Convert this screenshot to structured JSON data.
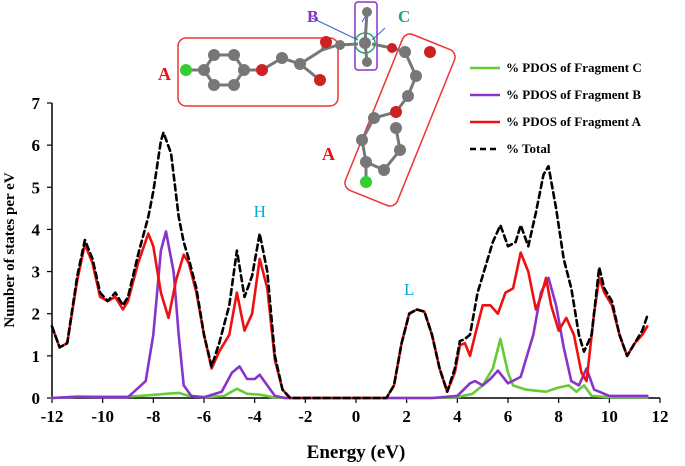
{
  "chart_data": {
    "type": "line",
    "xlabel": "Energy (eV)",
    "ylabel": "Number of states per eV",
    "xlim": [
      -12,
      12
    ],
    "ylim": [
      0,
      7
    ],
    "xticks": [
      -12,
      -10,
      -8,
      -6,
      -4,
      -2,
      0,
      2,
      4,
      6,
      8,
      10,
      12
    ],
    "yticks": [
      0,
      1,
      2,
      3,
      4,
      5,
      6,
      7
    ],
    "legend_position": "top-right",
    "series": [
      {
        "name": "% PDOS of Fragment C",
        "color": "#66cc33",
        "style": "solid",
        "points": [
          [
            -12,
            0
          ],
          [
            -11,
            0.03
          ],
          [
            -10,
            0.03
          ],
          [
            -9,
            0.03
          ],
          [
            -8.3,
            0.06
          ],
          [
            -7.5,
            0.1
          ],
          [
            -7,
            0.12
          ],
          [
            -6.6,
            0.05
          ],
          [
            -6,
            0.02
          ],
          [
            -5.2,
            0.05
          ],
          [
            -4.7,
            0.22
          ],
          [
            -4.3,
            0.1
          ],
          [
            -3.8,
            0.08
          ],
          [
            -3.3,
            0.02
          ],
          [
            -2.8,
            0
          ],
          [
            -2,
            0
          ],
          [
            0,
            0
          ],
          [
            2,
            0
          ],
          [
            3,
            0
          ],
          [
            4,
            0.02
          ],
          [
            4.6,
            0.1
          ],
          [
            5,
            0.3
          ],
          [
            5.4,
            0.7
          ],
          [
            5.7,
            1.4
          ],
          [
            6,
            0.6
          ],
          [
            6.2,
            0.3
          ],
          [
            6.7,
            0.2
          ],
          [
            7,
            0.18
          ],
          [
            7.5,
            0.15
          ],
          [
            8,
            0.25
          ],
          [
            8.4,
            0.3
          ],
          [
            8.7,
            0.15
          ],
          [
            9,
            0.3
          ],
          [
            9.3,
            0.05
          ],
          [
            10,
            0.02
          ],
          [
            11,
            0.02
          ],
          [
            11.5,
            0.02
          ]
        ]
      },
      {
        "name": "% PDOS of Fragment B",
        "color": "#8833cc",
        "style": "solid",
        "points": [
          [
            -12,
            0
          ],
          [
            -11,
            0.03
          ],
          [
            -10,
            0.02
          ],
          [
            -9,
            0.02
          ],
          [
            -8.3,
            0.4
          ],
          [
            -8,
            1.5
          ],
          [
            -7.7,
            3.5
          ],
          [
            -7.5,
            3.95
          ],
          [
            -7.2,
            3
          ],
          [
            -7,
            1.5
          ],
          [
            -6.8,
            0.3
          ],
          [
            -6.5,
            0.05
          ],
          [
            -6,
            0.02
          ],
          [
            -5.3,
            0.15
          ],
          [
            -4.9,
            0.6
          ],
          [
            -4.6,
            0.75
          ],
          [
            -4.3,
            0.45
          ],
          [
            -4,
            0.45
          ],
          [
            -3.8,
            0.55
          ],
          [
            -3.5,
            0.3
          ],
          [
            -3.2,
            0.05
          ],
          [
            -2.8,
            0
          ],
          [
            -2,
            0
          ],
          [
            0,
            0
          ],
          [
            2,
            0
          ],
          [
            3,
            0
          ],
          [
            4,
            0.05
          ],
          [
            4.5,
            0.35
          ],
          [
            4.7,
            0.4
          ],
          [
            5,
            0.3
          ],
          [
            5.3,
            0.45
          ],
          [
            5.6,
            0.65
          ],
          [
            6,
            0.35
          ],
          [
            6.5,
            0.5
          ],
          [
            7,
            1.5
          ],
          [
            7.3,
            2.5
          ],
          [
            7.6,
            2.85
          ],
          [
            7.9,
            2.2
          ],
          [
            8.2,
            1.2
          ],
          [
            8.5,
            0.4
          ],
          [
            8.8,
            0.3
          ],
          [
            9.1,
            0.7
          ],
          [
            9.4,
            0.2
          ],
          [
            10,
            0.05
          ],
          [
            11,
            0.05
          ],
          [
            11.5,
            0.05
          ]
        ]
      },
      {
        "name": "% PDOS of Fragment A",
        "color": "#ee1111",
        "style": "solid",
        "points": [
          [
            -12,
            1.7
          ],
          [
            -11.7,
            1.2
          ],
          [
            -11.4,
            1.3
          ],
          [
            -11,
            2.8
          ],
          [
            -10.7,
            3.65
          ],
          [
            -10.4,
            3.2
          ],
          [
            -10.1,
            2.4
          ],
          [
            -9.8,
            2.3
          ],
          [
            -9.5,
            2.4
          ],
          [
            -9.2,
            2.1
          ],
          [
            -9,
            2.3
          ],
          [
            -8.6,
            3.2
          ],
          [
            -8.2,
            3.9
          ],
          [
            -8,
            3.6
          ],
          [
            -7.7,
            2.5
          ],
          [
            -7.4,
            1.9
          ],
          [
            -7.1,
            2.8
          ],
          [
            -6.8,
            3.4
          ],
          [
            -6.6,
            3.2
          ],
          [
            -6.3,
            2.5
          ],
          [
            -6,
            1.5
          ],
          [
            -5.7,
            0.7
          ],
          [
            -5.4,
            1.1
          ],
          [
            -5,
            1.5
          ],
          [
            -4.7,
            2.5
          ],
          [
            -4.4,
            1.6
          ],
          [
            -4.1,
            2.0
          ],
          [
            -3.8,
            3.3
          ],
          [
            -3.5,
            2.6
          ],
          [
            -3.2,
            0.9
          ],
          [
            -2.9,
            0.2
          ],
          [
            -2.6,
            0
          ],
          [
            -2,
            0
          ],
          [
            0,
            0
          ],
          [
            1.2,
            0
          ],
          [
            1.5,
            0.3
          ],
          [
            1.8,
            1.3
          ],
          [
            2.1,
            2.0
          ],
          [
            2.4,
            2.1
          ],
          [
            2.7,
            2.05
          ],
          [
            3,
            1.5
          ],
          [
            3.3,
            0.7
          ],
          [
            3.6,
            0.15
          ],
          [
            3.9,
            0.6
          ],
          [
            4.1,
            1.25
          ],
          [
            4.3,
            1.3
          ],
          [
            4.5,
            1.0
          ],
          [
            4.7,
            1.5
          ],
          [
            5,
            2.2
          ],
          [
            5.3,
            2.2
          ],
          [
            5.6,
            2.0
          ],
          [
            5.9,
            2.5
          ],
          [
            6.2,
            2.6
          ],
          [
            6.5,
            3.45
          ],
          [
            6.8,
            3.0
          ],
          [
            7.1,
            2.1
          ],
          [
            7.3,
            2.4
          ],
          [
            7.5,
            2.85
          ],
          [
            7.7,
            2.2
          ],
          [
            8,
            1.6
          ],
          [
            8.3,
            1.9
          ],
          [
            8.6,
            1.5
          ],
          [
            8.9,
            0.6
          ],
          [
            9.1,
            0.4
          ],
          [
            9.4,
            2.0
          ],
          [
            9.6,
            2.85
          ],
          [
            9.8,
            2.5
          ],
          [
            10.1,
            2.2
          ],
          [
            10.4,
            1.5
          ],
          [
            10.7,
            1.0
          ],
          [
            11,
            1.3
          ],
          [
            11.3,
            1.5
          ],
          [
            11.5,
            1.7
          ]
        ]
      },
      {
        "name": "% Total",
        "color": "#000000",
        "style": "dashed",
        "points": [
          [
            -12,
            1.7
          ],
          [
            -11.7,
            1.2
          ],
          [
            -11.4,
            1.3
          ],
          [
            -11,
            2.9
          ],
          [
            -10.7,
            3.75
          ],
          [
            -10.4,
            3.3
          ],
          [
            -10.1,
            2.5
          ],
          [
            -9.8,
            2.3
          ],
          [
            -9.5,
            2.5
          ],
          [
            -9.2,
            2.2
          ],
          [
            -9,
            2.4
          ],
          [
            -8.6,
            3.4
          ],
          [
            -8.2,
            4.3
          ],
          [
            -8,
            4.9
          ],
          [
            -7.7,
            6.1
          ],
          [
            -7.6,
            6.3
          ],
          [
            -7.3,
            5.8
          ],
          [
            -7.0,
            4.3
          ],
          [
            -6.8,
            3.7
          ],
          [
            -6.6,
            3.3
          ],
          [
            -6.3,
            2.6
          ],
          [
            -6,
            1.5
          ],
          [
            -5.7,
            0.75
          ],
          [
            -5.4,
            1.3
          ],
          [
            -5,
            2.2
          ],
          [
            -4.7,
            3.5
          ],
          [
            -4.4,
            2.4
          ],
          [
            -4.1,
            2.9
          ],
          [
            -3.8,
            3.9
          ],
          [
            -3.5,
            3.0
          ],
          [
            -3.2,
            1.0
          ],
          [
            -2.9,
            0.2
          ],
          [
            -2.6,
            0
          ],
          [
            -2,
            0
          ],
          [
            0,
            0
          ],
          [
            1.2,
            0
          ],
          [
            1.5,
            0.3
          ],
          [
            1.8,
            1.3
          ],
          [
            2.1,
            2.0
          ],
          [
            2.4,
            2.1
          ],
          [
            2.7,
            2.05
          ],
          [
            3,
            1.5
          ],
          [
            3.3,
            0.7
          ],
          [
            3.6,
            0.15
          ],
          [
            3.9,
            0.7
          ],
          [
            4.1,
            1.35
          ],
          [
            4.3,
            1.4
          ],
          [
            4.5,
            1.5
          ],
          [
            4.8,
            2.5
          ],
          [
            5.1,
            3.1
          ],
          [
            5.4,
            3.7
          ],
          [
            5.7,
            4.1
          ],
          [
            6,
            3.6
          ],
          [
            6.3,
            3.7
          ],
          [
            6.5,
            4.1
          ],
          [
            6.8,
            3.6
          ],
          [
            7.1,
            4.4
          ],
          [
            7.4,
            5.3
          ],
          [
            7.6,
            5.5
          ],
          [
            7.9,
            4.5
          ],
          [
            8.2,
            3.3
          ],
          [
            8.5,
            2.6
          ],
          [
            8.8,
            1.5
          ],
          [
            9,
            1.1
          ],
          [
            9.3,
            1.5
          ],
          [
            9.6,
            3.1
          ],
          [
            9.8,
            2.6
          ],
          [
            10.1,
            2.3
          ],
          [
            10.4,
            1.5
          ],
          [
            10.7,
            1.0
          ],
          [
            11,
            1.3
          ],
          [
            11.3,
            1.6
          ],
          [
            11.5,
            1.95
          ]
        ]
      }
    ],
    "annotations": [
      {
        "text": "H",
        "x": -3.8,
        "y": 4.3,
        "color": "#00aadd"
      },
      {
        "text": "L",
        "x": 2.1,
        "y": 2.45,
        "color": "#00aadd"
      }
    ]
  },
  "molecule_inset": {
    "fragment_labels": [
      {
        "text": "A",
        "color": "#ee1111"
      },
      {
        "text": "A",
        "color": "#ee1111"
      },
      {
        "text": "B",
        "color": "#8833cc"
      },
      {
        "text": "C",
        "color": "#22aa66"
      }
    ]
  }
}
